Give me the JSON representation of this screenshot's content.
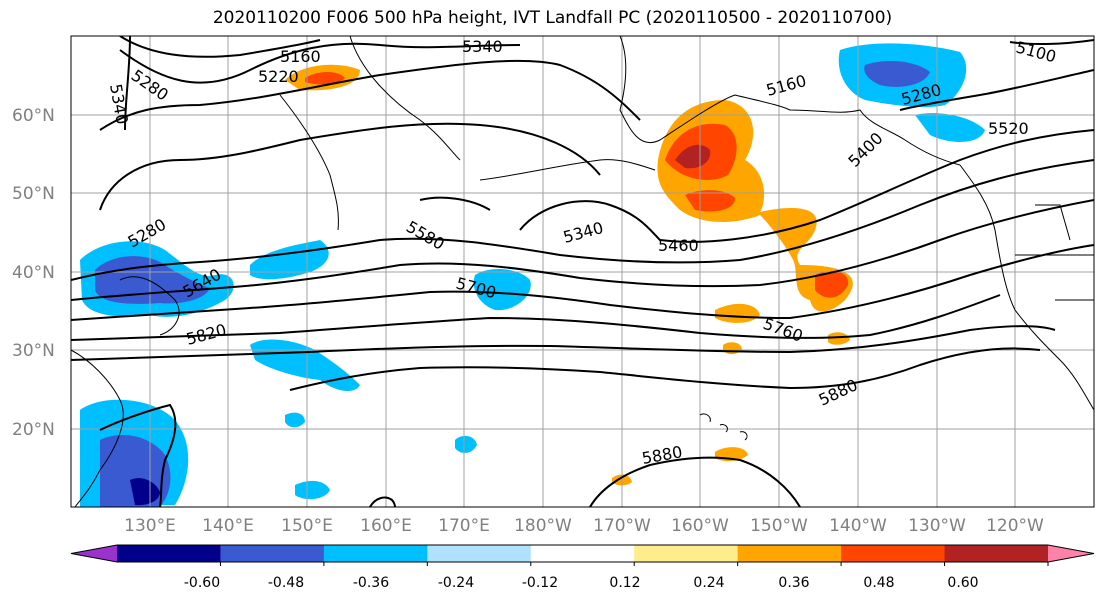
{
  "title": "2020110200 F006 500 hPa height, IVT Landfall PC (2020110500 - 2020110700)",
  "lat_labels": [
    "60°N",
    "50°N",
    "40°N",
    "30°N",
    "20°N"
  ],
  "lon_labels": [
    "130°E",
    "140°E",
    "150°E",
    "160°E",
    "170°E",
    "180°W",
    "170°W",
    "160°W",
    "150°W",
    "140°W",
    "130°W",
    "120°W"
  ],
  "contour_labels": [
    "5160",
    "5220",
    "5280",
    "5340",
    "5340",
    "5160",
    "5100",
    "5280",
    "5520",
    "5400",
    "5280",
    "5640",
    "5820",
    "5580",
    "5700",
    "5340",
    "5460",
    "5760",
    "5880",
    "5880"
  ],
  "colorbar": {
    "ticks": [
      "-0.60",
      "-0.48",
      "-0.36",
      "-0.24",
      "-0.12",
      "0.12",
      "0.24",
      "0.36",
      "0.48",
      "0.60"
    ],
    "colors": [
      "#9a32cd",
      "#00008b",
      "#3a5ad2",
      "#00bfff",
      "#b0e2ff",
      "#ffffff",
      "#ffec8b",
      "#ffa500",
      "#ff4500",
      "#b22222",
      "#ff82ab"
    ]
  },
  "layers": {
    "contours": "500 hPa height",
    "shading": "IVT Landfall PC"
  }
}
